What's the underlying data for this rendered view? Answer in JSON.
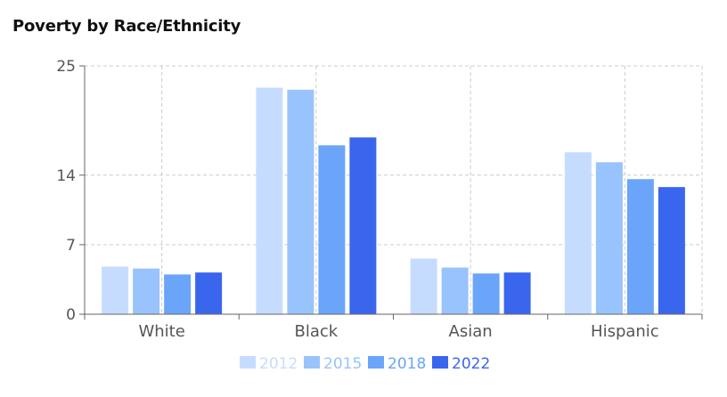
{
  "title": "Poverty by Race/Ethnicity",
  "chart_data": {
    "type": "bar",
    "categories": [
      "White",
      "Black",
      "Asian",
      "Hispanic"
    ],
    "series": [
      {
        "name": "2012",
        "color": "#c6dcff",
        "values": [
          4.8,
          22.8,
          5.6,
          16.3
        ]
      },
      {
        "name": "2015",
        "color": "#99c3fc",
        "values": [
          4.6,
          22.6,
          4.7,
          15.3
        ]
      },
      {
        "name": "2018",
        "color": "#6ba5f9",
        "values": [
          4.0,
          17.0,
          4.1,
          13.6
        ]
      },
      {
        "name": "2022",
        "color": "#3a66ee",
        "values": [
          4.2,
          17.8,
          4.2,
          12.8
        ]
      }
    ],
    "y_ticks": [
      0,
      7,
      14,
      25
    ],
    "ylim": [
      0,
      25
    ],
    "grid": true,
    "legend_position": "bottom"
  }
}
